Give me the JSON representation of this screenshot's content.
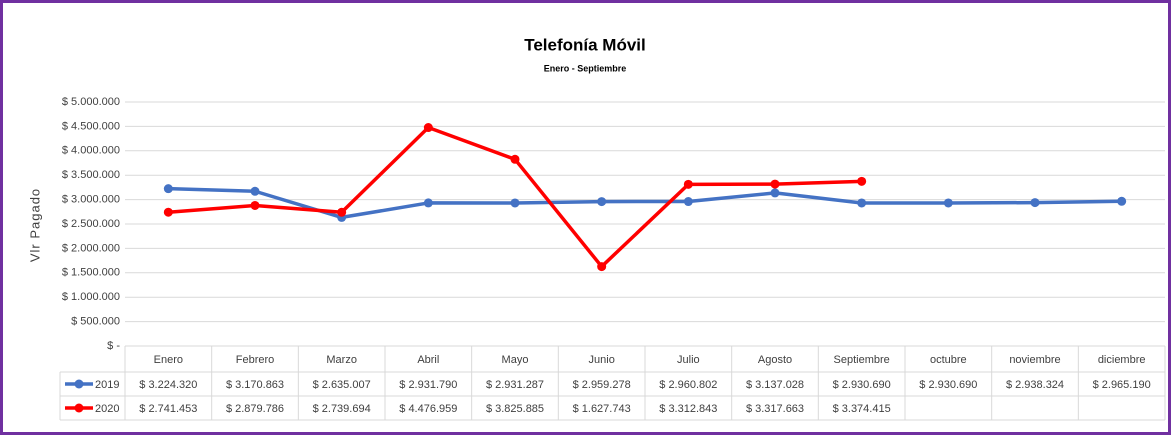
{
  "chart_data": {
    "type": "line",
    "title": "Telefonía Móvil",
    "subtitle": "Enero - Septiembre",
    "y_label": "Vlr Pagado",
    "categories": [
      "Enero",
      "Febrero",
      "Marzo",
      "Abril",
      "Mayo",
      "Junio",
      "Julio",
      "Agosto",
      "Septiembre",
      "octubre",
      "noviembre",
      "diciembre"
    ],
    "series": [
      {
        "name": "2019",
        "color": "#4472c4",
        "values": [
          3224320,
          3170863,
          2635007,
          2931790,
          2931287,
          2959278,
          2960802,
          3137028,
          2930690,
          2930690,
          2938324,
          2965190
        ],
        "value_labels": [
          "$ 3.224.320",
          "$ 3.170.863",
          "$ 2.635.007",
          "$ 2.931.790",
          "$ 2.931.287",
          "$ 2.959.278",
          "$ 2.960.802",
          "$ 3.137.028",
          "$ 2.930.690",
          "$ 2.930.690",
          "$ 2.938.324",
          "$ 2.965.190"
        ]
      },
      {
        "name": "2020",
        "color": "#ff0000",
        "values": [
          2741453,
          2879786,
          2739694,
          4476959,
          3825885,
          1627743,
          3312843,
          3317663,
          3374415,
          null,
          null,
          null
        ],
        "value_labels": [
          "$ 2.741.453",
          "$ 2.879.786",
          "$ 2.739.694",
          "$ 4.476.959",
          "$ 3.825.885",
          "$ 1.627.743",
          "$ 3.312.843",
          "$ 3.317.663",
          "$ 3.374.415",
          null,
          null,
          null
        ]
      }
    ],
    "ylim": [
      0,
      5000000
    ],
    "yticks": [
      {
        "value": 0,
        "label": "$ -"
      },
      {
        "value": 500000,
        "label": "$ 500.000"
      },
      {
        "value": 1000000,
        "label": "$ 1.000.000"
      },
      {
        "value": 1500000,
        "label": "$ 1.500.000"
      },
      {
        "value": 2000000,
        "label": "$ 2.000.000"
      },
      {
        "value": 2500000,
        "label": "$ 2.500.000"
      },
      {
        "value": 3000000,
        "label": "$ 3.000.000"
      },
      {
        "value": 3500000,
        "label": "$ 3.500.000"
      },
      {
        "value": 4000000,
        "label": "$ 4.000.000"
      },
      {
        "value": 4500000,
        "label": "$ 4.500.000"
      },
      {
        "value": 5000000,
        "label": "$ 5.000.000"
      }
    ],
    "grid": true
  }
}
